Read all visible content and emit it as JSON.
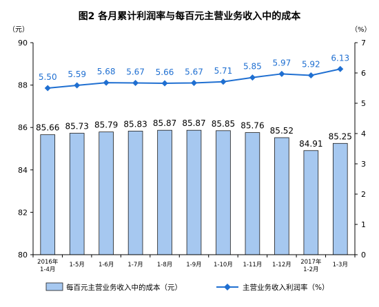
{
  "chart_data": {
    "type": "bar",
    "title": "图2  各月累计利润率与每百元主营业务收入中的成本",
    "left_unit": "（元）",
    "right_unit": "（%）",
    "categories": [
      [
        "2016年",
        "1-4月"
      ],
      [
        "1-5月"
      ],
      [
        "1-6月"
      ],
      [
        "1-7月"
      ],
      [
        "1-8月"
      ],
      [
        "1-9月"
      ],
      [
        "1-10月"
      ],
      [
        "1-11月"
      ],
      [
        "1-12月"
      ],
      [
        "2017年",
        "1-2月"
      ],
      [
        "1-3月"
      ]
    ],
    "series": [
      {
        "name": "每百元主营业务收入中的成本（元）",
        "type": "bar",
        "axis": "left",
        "values": [
          85.66,
          85.73,
          85.79,
          85.83,
          85.87,
          85.87,
          85.85,
          85.76,
          85.52,
          84.91,
          85.25
        ],
        "labels": [
          "85.66",
          "85.73",
          "85.79",
          "85.83",
          "85.87",
          "85.87",
          "85.85",
          "85.76",
          "85.52",
          "84.91",
          "85.25"
        ],
        "color": "#a6c8f0"
      },
      {
        "name": "主营业务收入利润率（%）",
        "type": "line",
        "axis": "right",
        "values": [
          5.5,
          5.59,
          5.68,
          5.67,
          5.66,
          5.67,
          5.71,
          5.85,
          5.97,
          5.92,
          6.13
        ],
        "labels": [
          "5.50",
          "5.59",
          "5.68",
          "5.67",
          "5.66",
          "5.67",
          "5.71",
          "5.85",
          "5.97",
          "5.92",
          "6.13"
        ],
        "color": "#1f6fd1"
      }
    ],
    "y_left": {
      "min": 80,
      "max": 90,
      "ticks": [
        "80",
        "82",
        "84",
        "86",
        "88",
        "90"
      ]
    },
    "y_right": {
      "min": 0,
      "max": 7,
      "ticks": [
        "0",
        "1",
        "2",
        "3",
        "4",
        "5",
        "6",
        "7"
      ]
    },
    "grid": false,
    "legend_position": "bottom"
  }
}
